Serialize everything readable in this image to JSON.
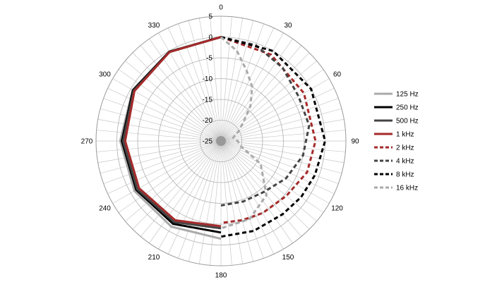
{
  "chart_data": {
    "type": "polar-line",
    "title": "",
    "angle_unit": "degrees",
    "angle_direction": "clockwise",
    "angle_zero": "top",
    "angle_ticks": [
      "0",
      "30",
      "60",
      "90",
      "120",
      "150",
      "180",
      "210",
      "240",
      "270",
      "300",
      "330"
    ],
    "angle_tick_values": [
      0,
      30,
      60,
      90,
      120,
      150,
      180,
      210,
      240,
      270,
      300,
      330
    ],
    "radial_range": [
      -25,
      5
    ],
    "radial_ticks": [
      "5",
      "0",
      "-5",
      "-10",
      "-15",
      "-20",
      "-25"
    ],
    "radial_tick_values": [
      5,
      0,
      -5,
      -10,
      -15,
      -20,
      -25
    ],
    "spoke_step_deg": 5,
    "legend_position": "right",
    "series": [
      {
        "name": "125 Hz",
        "color": "#aaaaaa",
        "dash": "solid",
        "angles": [
          180,
          210,
          240,
          270,
          300,
          330,
          360
        ],
        "values": [
          -1.5,
          -1.2,
          -1.0,
          -0.8,
          -0.5,
          -0.2,
          0
        ]
      },
      {
        "name": "250 Hz",
        "color": "#000000",
        "dash": "solid",
        "angles": [
          180,
          210,
          240,
          270,
          300,
          330,
          360
        ],
        "values": [
          -3,
          -2,
          -1.5,
          -1.2,
          -0.6,
          -0.2,
          0
        ]
      },
      {
        "name": "500 Hz",
        "color": "#444444",
        "dash": "solid",
        "angles": [
          180,
          210,
          240,
          270,
          300,
          330,
          360
        ],
        "values": [
          -4,
          -2.5,
          -1.8,
          -1.5,
          -0.8,
          -0.3,
          0
        ]
      },
      {
        "name": "1 kHz",
        "color": "#a52a2a",
        "dash": "solid",
        "angles": [
          180,
          210,
          240,
          270,
          300,
          330,
          360
        ],
        "values": [
          -4.5,
          -3,
          -2.3,
          -2,
          -1,
          -0.3,
          0
        ]
      },
      {
        "name": "2 kHz",
        "color": "#a52a2a",
        "dash": "dashed",
        "angles": [
          0,
          30,
          60,
          90,
          110,
          130,
          150,
          165,
          180
        ],
        "values": [
          0,
          -1,
          -2,
          -2.3,
          -3,
          -4.5,
          -5,
          -5.3,
          -5.3
        ]
      },
      {
        "name": "4 kHz",
        "color": "#444444",
        "dash": "dashed",
        "angles": [
          0,
          20,
          40,
          60,
          80,
          100,
          120,
          140,
          160,
          180
        ],
        "values": [
          0,
          -0.5,
          -2,
          -3.5,
          -3.5,
          -5,
          -7,
          -9,
          -9.5,
          -9.5
        ]
      },
      {
        "name": "8 kHz",
        "color": "#000000",
        "dash": "dashed",
        "angles": [
          0,
          30,
          60,
          90,
          110,
          125,
          140,
          160,
          180
        ],
        "values": [
          0,
          0,
          0,
          0,
          -1,
          -1.5,
          -2,
          -2,
          -2
        ]
      },
      {
        "name": "16 kHz",
        "color": "#aaaaaa",
        "dash": "dashed",
        "angles": [
          0,
          10,
          20,
          30,
          40,
          50,
          60,
          75,
          90,
          105,
          120,
          140,
          160,
          180
        ],
        "values": [
          0,
          -3,
          -7,
          -10,
          -14,
          -18,
          -20,
          -22,
          -21,
          -20,
          -14,
          -8,
          -5,
          -4
        ]
      }
    ]
  }
}
